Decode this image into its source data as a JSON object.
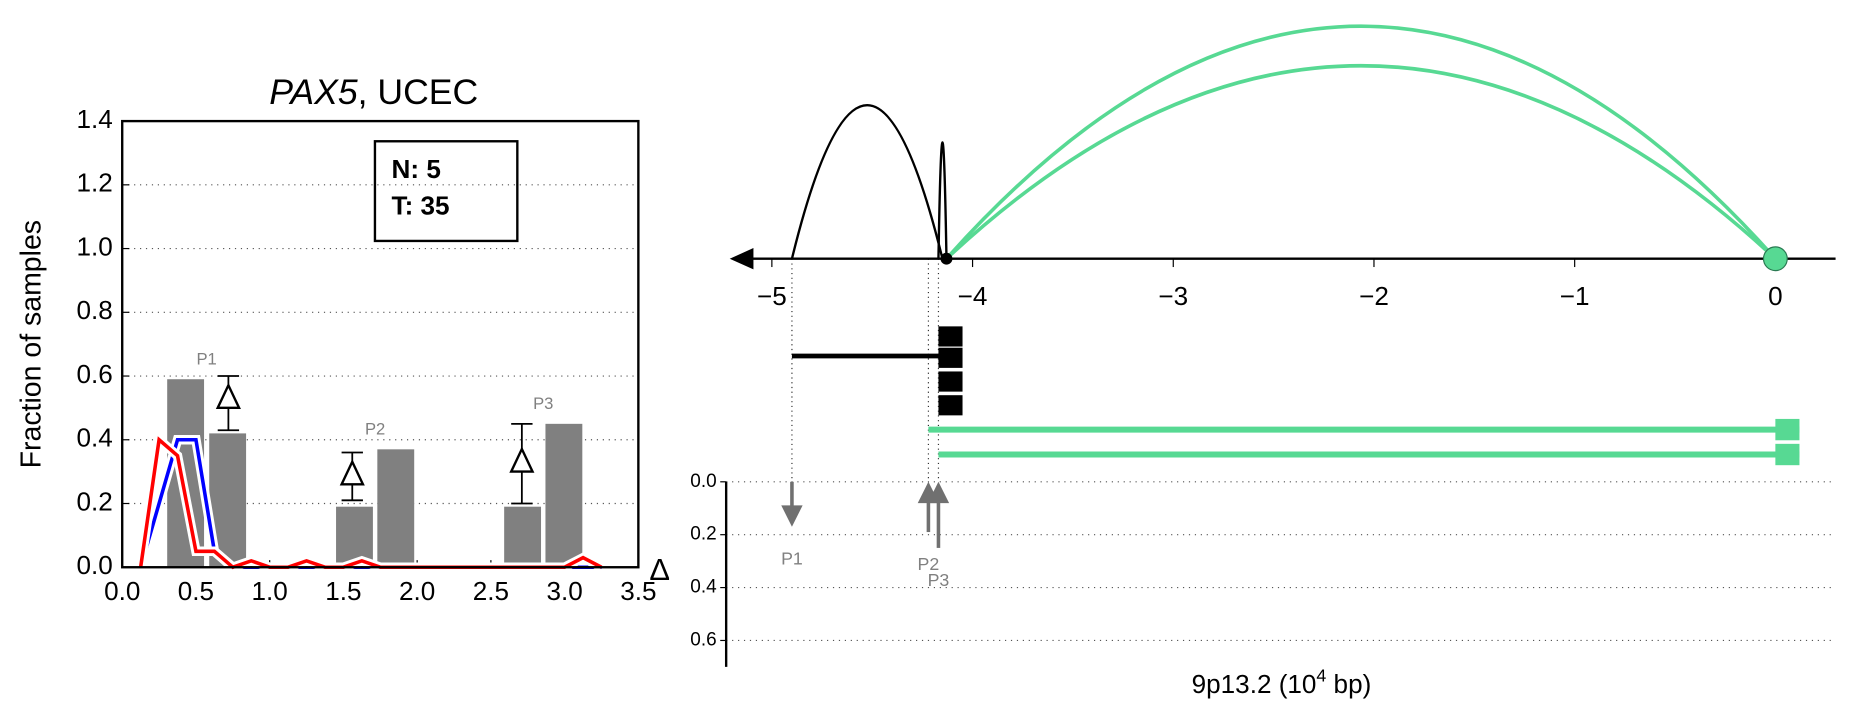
{
  "chart_data": [
    {
      "type": "bar",
      "title": [
        "PAX5",
        ", UCEC"
      ],
      "ylabel": "Fraction of samples",
      "xlim": [
        0,
        3.5
      ],
      "xticks": [
        {
          "value": 0,
          "label": "0.0"
        },
        {
          "value": 0.5,
          "label": "0.5"
        },
        {
          "value": 1,
          "label": "1.0"
        },
        {
          "value": 1.5,
          "label": "1.5"
        },
        {
          "value": 2,
          "label": "2.0"
        },
        {
          "value": 2.5,
          "label": "2.5"
        },
        {
          "value": 3,
          "label": "3.0"
        },
        {
          "value": 3.5,
          "label": "3.5"
        }
      ],
      "ylim": [
        0,
        1.4
      ],
      "yticks": [
        {
          "value": 0,
          "label": "0.0"
        },
        {
          "value": 0.2,
          "label": "0.2"
        },
        {
          "value": 0.4,
          "label": "0.4"
        },
        {
          "value": 0.6,
          "label": "0.6"
        },
        {
          "value": 0.8,
          "label": "0.8"
        },
        {
          "value": 1,
          "label": "1.0"
        },
        {
          "value": 1.2,
          "label": "1.2"
        },
        {
          "value": 1.4,
          "label": "1.4"
        }
      ],
      "grid": true,
      "annotation": [
        "N: 5",
        "T: 35"
      ],
      "bars": {
        "color": "#808080",
        "width": 0.25,
        "x": [
          0.43,
          0.715,
          1.575,
          1.855,
          2.715,
          2.995
        ],
        "values": [
          0.59,
          0.42,
          0.19,
          0.37,
          0.19,
          0.45
        ]
      },
      "peak_labels": [
        "P1",
        "P2",
        "P3"
      ],
      "deltas": {
        "x": [
          0.72,
          1.56,
          2.71
        ],
        "values": [
          0.53,
          0.29,
          0.33
        ],
        "lower": [
          0.43,
          0.21,
          0.2
        ],
        "upper": [
          0.6,
          0.36,
          0.45
        ]
      },
      "series": [
        {
          "color": "#0000ff",
          "x": [
            0.125,
            0.25,
            0.375,
            0.5,
            0.625,
            0.75,
            0.875,
            1.0,
            1.125,
            1.25,
            1.375,
            1.5,
            1.625,
            1.75,
            1.875,
            2.0,
            2.125,
            2.25,
            2.375,
            2.5,
            2.625,
            2.75,
            2.875,
            3.0,
            3.125,
            3.25
          ],
          "values": [
            0,
            0.2,
            0.4,
            0.4,
            0.05,
            0,
            0,
            0,
            0,
            0,
            0,
            0,
            0,
            0,
            0,
            0,
            0,
            0,
            0,
            0,
            0,
            0,
            0,
            0,
            0,
            0
          ]
        },
        {
          "color": "#ff0000",
          "x": [
            0.125,
            0.25,
            0.375,
            0.5,
            0.625,
            0.75,
            0.875,
            1.0,
            1.125,
            1.25,
            1.375,
            1.5,
            1.625,
            1.75,
            1.875,
            2.0,
            2.125,
            2.25,
            2.375,
            2.5,
            2.625,
            2.75,
            2.875,
            3.0,
            3.125,
            3.25
          ],
          "values": [
            0,
            0.4,
            0.35,
            0.05,
            0.05,
            0,
            0.02,
            0,
            0,
            0.02,
            0,
            0,
            0.02,
            0,
            0,
            0,
            0,
            0,
            0,
            0,
            0,
            0,
            0,
            0,
            0.03,
            0
          ]
        }
      ]
    },
    {
      "type": "loops",
      "xlabel": [
        "9p13.2 (10",
        "4",
        " bp)"
      ],
      "ylabel": "Δ",
      "xlim": [
        -5.21,
        0.3
      ],
      "xticks": [
        {
          "value": -5,
          "label": "−5"
        },
        {
          "value": -4,
          "label": "−4"
        },
        {
          "value": -3,
          "label": "−3"
        },
        {
          "value": -2,
          "label": "−2"
        },
        {
          "value": -1,
          "label": "−1"
        },
        0
      ],
      "ylim": [
        0,
        0.7
      ],
      "yticks": [
        {
          "value": 0,
          "label": "0.0"
        },
        {
          "value": 0.2,
          "label": "0.2"
        },
        {
          "value": 0.4,
          "label": "0.4"
        },
        {
          "value": 0.6,
          "label": "0.6"
        }
      ],
      "grid": true,
      "anchor": -4.13,
      "viewpoint": 0,
      "loops": [
        {
          "start": -4.9,
          "end": -4.15,
          "value": 0.66,
          "color": "#000000"
        },
        {
          "start": -4.17,
          "end": -4.13,
          "value": 0.5,
          "color": "#000000"
        },
        {
          "start": -4.13,
          "end": 0,
          "value": 1.0,
          "color": "#57d993"
        },
        {
          "start": -4.13,
          "end": 0,
          "value": 0.83,
          "color": "#57d993"
        }
      ],
      "transcripts": [
        {
          "start": -4.9,
          "end": -4.1,
          "exon": [
            -4.17,
            -4.05
          ],
          "color": "#000000"
        },
        {
          "start": -4.22,
          "end": 0.12,
          "exon": [
            0,
            0.12
          ],
          "color": "#57d993"
        },
        {
          "start": -4.17,
          "end": 0.12,
          "exon": [
            0,
            0.12
          ],
          "color": "#57d993"
        }
      ],
      "arrows": {
        "labels": [
          "P1",
          "P2",
          "P3"
        ],
        "x": [
          -4.9,
          -4.22,
          -4.17
        ],
        "values": [
          0.17,
          0.19,
          0.25
        ],
        "direction": [
          "down",
          "up",
          "up"
        ]
      }
    }
  ]
}
